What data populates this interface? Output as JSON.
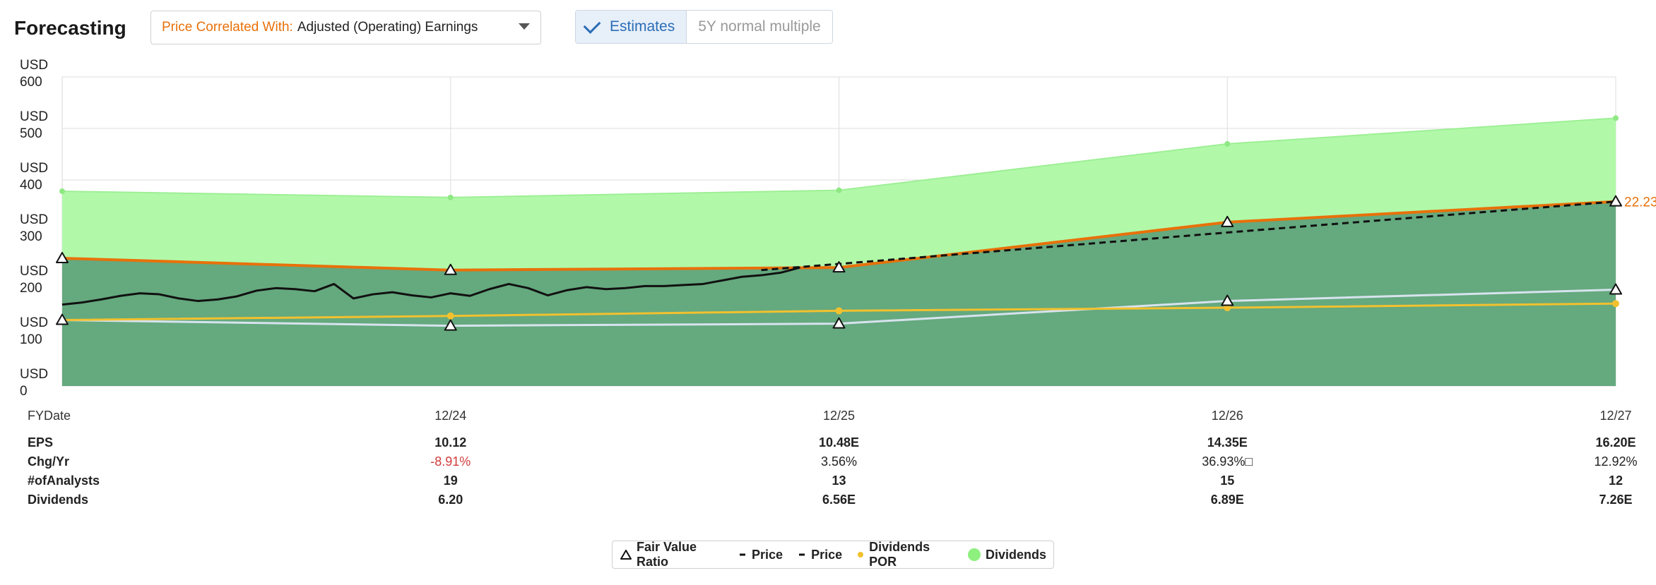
{
  "header": {
    "title": "Forecasting",
    "dropdown_label": "Price Correlated With:",
    "dropdown_value": "Adjusted (Operating) Earnings",
    "toggle_active": "Estimates",
    "toggle_inactive": "5Y normal multiple"
  },
  "colors": {
    "dividends_area": "#b1f9a9",
    "value_area": "#65a97e",
    "fair_value_line": "#e8710a",
    "price_line": "#111111",
    "dividends_por_line": "#f2c12e",
    "normal_line": "#d7e3ee",
    "end_label": "#e8710a"
  },
  "chart_data": {
    "type": "area",
    "y_currency": "USD",
    "y_ticks": [
      0,
      100,
      200,
      300,
      400,
      500,
      600
    ],
    "ylim": [
      0,
      600
    ],
    "x_axis_label": "FYDate",
    "x_ticks": [
      "12/24",
      "12/25",
      "12/26",
      "12/27"
    ],
    "xlim": [
      0,
      4
    ],
    "series": [
      {
        "name": "Dividends",
        "x": [
          0,
          1,
          2,
          3,
          4
        ],
        "values": [
          378,
          366,
          380,
          470,
          520
        ]
      },
      {
        "x": [
          0,
          1,
          2,
          3,
          4
        ],
        "values": [
          248,
          225,
          230,
          318,
          358
        ]
      },
      {
        "x": [
          0,
          1,
          2,
          3,
          4
        ],
        "values": [
          128,
          117,
          121,
          165,
          187
        ]
      },
      {
        "name": "Dividends POR",
        "x": [
          0,
          1,
          2,
          3,
          4
        ],
        "values": [
          128,
          136,
          146,
          152,
          160
        ]
      },
      {
        "name": "Price",
        "x": [
          0,
          0.05,
          0.1,
          0.15,
          0.2,
          0.25,
          0.3,
          0.35,
          0.4,
          0.45,
          0.5,
          0.55,
          0.6,
          0.65,
          0.7,
          0.75,
          0.8,
          0.85,
          0.9,
          0.95,
          1.0,
          1.05,
          1.1,
          1.15,
          1.2,
          1.25,
          1.3,
          1.35,
          1.4,
          1.45,
          1.5,
          1.55,
          1.6,
          1.65,
          1.7,
          1.75,
          1.8,
          1.85,
          1.9
        ],
        "values": [
          158,
          162,
          168,
          175,
          180,
          178,
          170,
          165,
          168,
          174,
          185,
          190,
          188,
          184,
          198,
          170,
          178,
          182,
          176,
          172,
          180,
          175,
          188,
          198,
          190,
          176,
          186,
          192,
          188,
          190,
          194,
          194,
          196,
          198,
          205,
          212,
          215,
          220,
          230
        ]
      },
      {
        "name": "Price",
        "x": [
          1.8,
          2,
          3,
          4
        ],
        "values": [
          225,
          237,
          298,
          358
        ]
      }
    ],
    "markers": [
      {
        "name": "Fair Value Ratio",
        "x": [
          0,
          1,
          2,
          3,
          4
        ],
        "values": [
          248,
          225,
          230,
          318,
          358
        ]
      },
      {
        "name": "Fair Value Ratio",
        "x": [
          0,
          1,
          2,
          3,
          4
        ],
        "values": [
          128,
          117,
          121,
          165,
          187
        ]
      }
    ],
    "end_label": "22.23",
    "legend": [
      "Fair Value Ratio",
      "Price",
      "Price",
      "Dividends POR",
      "Dividends"
    ],
    "legend_position": "bottom-center",
    "grid": true
  },
  "table": {
    "rows": [
      {
        "label": "EPS",
        "values": [
          "10.12",
          "10.48E",
          "14.35E",
          "16.20E"
        ]
      },
      {
        "label": "Chg/Yr",
        "values": [
          "-8.91%",
          "3.56%",
          "36.93%□",
          "12.92%"
        ]
      },
      {
        "label": "#ofAnalysts",
        "values": [
          "19",
          "13",
          "15",
          "12"
        ]
      },
      {
        "label": "Dividends",
        "values": [
          "6.20",
          "6.56E",
          "6.89E",
          "7.26E"
        ]
      }
    ],
    "negative_color": "#d23c3c"
  }
}
